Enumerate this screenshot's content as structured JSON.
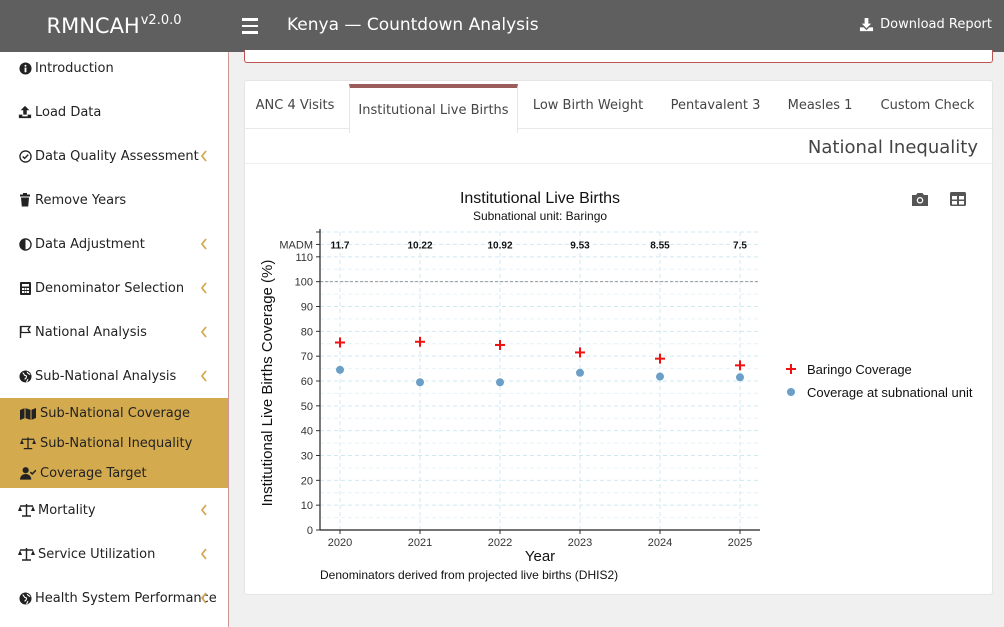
{
  "header": {
    "brand": "RMNCAH",
    "version": "v2.0.0",
    "title": "Kenya — Countdown Analysis",
    "download_label": "Download Report"
  },
  "sidebar": {
    "items": [
      {
        "label": "Introduction",
        "icon": "info-circle-icon",
        "chevron": false
      },
      {
        "label": "Load Data",
        "icon": "upload-icon",
        "chevron": false
      },
      {
        "label": "Data Quality Assessment",
        "icon": "check-circle-icon",
        "chevron": true
      },
      {
        "label": "Remove Years",
        "icon": "trash-icon",
        "chevron": false
      },
      {
        "label": "Data Adjustment",
        "icon": "adjust-icon",
        "chevron": true
      },
      {
        "label": "Denominator Selection",
        "icon": "calculator-icon",
        "chevron": true
      },
      {
        "label": "National Analysis",
        "icon": "flag-icon",
        "chevron": true
      },
      {
        "label": "Sub-National Analysis",
        "icon": "globe-icon",
        "chevron": true
      }
    ],
    "submenu": [
      {
        "label": "Sub-National Coverage",
        "icon": "map-icon"
      },
      {
        "label": "Sub-National Inequality",
        "icon": "balance-scale-icon"
      },
      {
        "label": "Coverage Target",
        "icon": "user-check-icon"
      }
    ],
    "lower_items": [
      {
        "label": "Mortality",
        "icon": "balance-scale-icon",
        "chevron": true
      },
      {
        "label": "Service Utilization",
        "icon": "balance-scale-icon",
        "chevron": true
      },
      {
        "label": "Health System Performance",
        "icon": "globe-icon",
        "chevron": true
      }
    ]
  },
  "tabs": [
    {
      "label": "ANC 4 Visits"
    },
    {
      "label": "Institutional Live Births"
    },
    {
      "label": "Low Birth Weight"
    },
    {
      "label": "Pentavalent 3"
    },
    {
      "label": "Measles 1"
    },
    {
      "label": "Custom Check"
    }
  ],
  "active_tab": 1,
  "panel_heading": "National Inequality",
  "chart_data": {
    "type": "scatter",
    "title": "Institutional Live Births",
    "subtitle": "Subnational unit: Baringo",
    "xlabel": "Year",
    "ylabel": "Institutional Live Births Coverage (%)",
    "caption": "Denominators derived from projected live births (DHIS2)",
    "x": [
      "2020",
      "2021",
      "2022",
      "2023",
      "2024",
      "2025"
    ],
    "ylim": [
      0,
      120
    ],
    "yticks": [
      "0",
      "10",
      "20",
      "30",
      "40",
      "50",
      "60",
      "70",
      "80",
      "90",
      "100",
      "110"
    ],
    "madm_label": "MADM",
    "madm_values": [
      "11.7",
      "10.22",
      "10.92",
      "9.53",
      "8.55",
      "7.5"
    ],
    "reference_line": 100,
    "series": [
      {
        "name": "Baringo Coverage",
        "marker": "plus",
        "color": "#ee1111",
        "values": [
          75.5,
          75.8,
          74.5,
          71.5,
          69.0,
          66.3
        ]
      },
      {
        "name": "Coverage at subnational unit",
        "marker": "circle",
        "color": "#6b9fc8",
        "values": [
          64.5,
          59.5,
          59.5,
          63.3,
          61.8,
          61.5
        ]
      }
    ],
    "legend_position": "right",
    "grid": true
  }
}
